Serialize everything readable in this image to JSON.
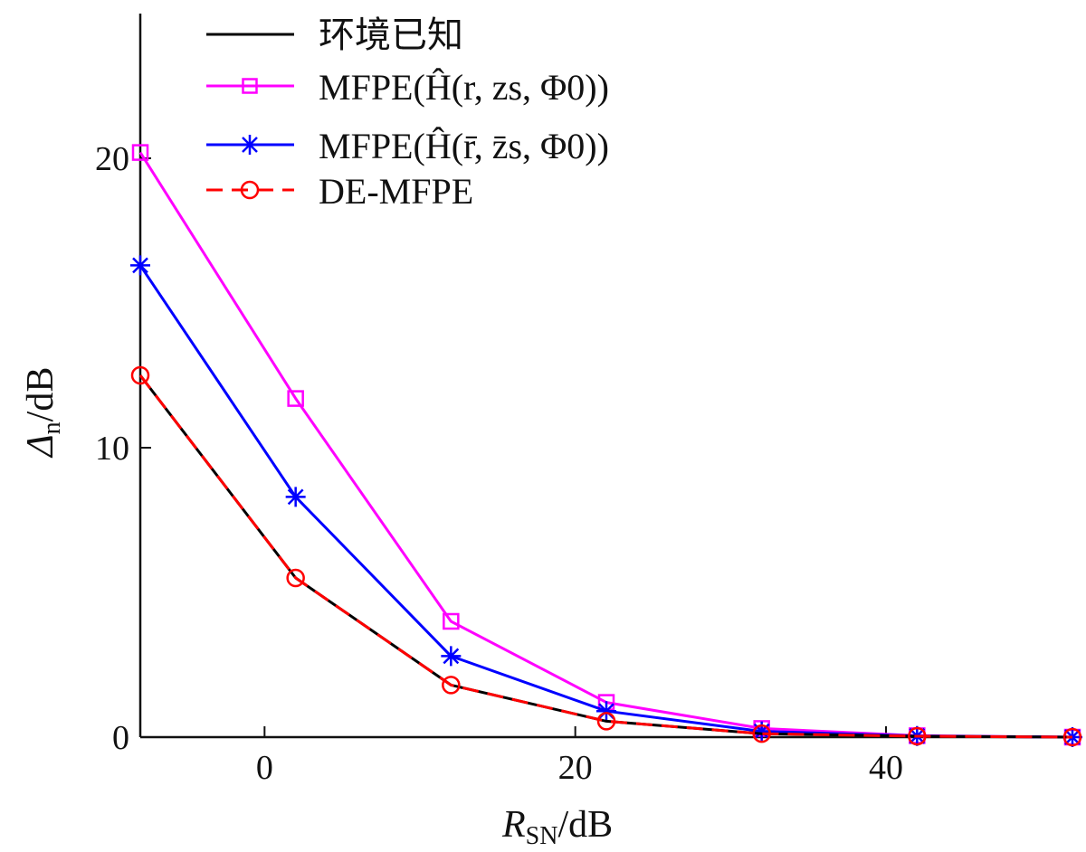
{
  "chart_data": {
    "type": "line",
    "x": [
      -8,
      2,
      12,
      22,
      32,
      42,
      52
    ],
    "xlim": [
      -8,
      52
    ],
    "ylim": [
      0,
      25
    ],
    "xticks": [
      0,
      20,
      40
    ],
    "yticks": [
      0,
      10,
      20
    ],
    "xtick_labels": [
      "0",
      "20",
      "40"
    ],
    "ytick_labels": [
      "0",
      "10",
      "20"
    ],
    "xlabel": {
      "main": "R",
      "sub": "SN",
      "unit": "/dB"
    },
    "ylabel": {
      "main": "Δ",
      "sub": "n",
      "unit": "/dB"
    },
    "grid": false,
    "legend_position": "top-center",
    "series": [
      {
        "name": "环境已知",
        "color": "#000000",
        "marker": "none",
        "dash": "solid",
        "values": [
          12.5,
          5.5,
          1.8,
          0.55,
          0.12,
          0.03,
          0.0
        ]
      },
      {
        "name": "MFPE(Ĥ(r, zs, Φ0))",
        "color": "#ff00ff",
        "marker": "square",
        "dash": "solid",
        "values": [
          20.2,
          11.7,
          4.0,
          1.2,
          0.3,
          0.05,
          0.0
        ]
      },
      {
        "name": "MFPE(Ĥ(r̄, z̄s, Φ0))",
        "color": "#0000ff",
        "marker": "star",
        "dash": "solid",
        "values": [
          16.3,
          8.3,
          2.8,
          0.9,
          0.2,
          0.04,
          0.0
        ]
      },
      {
        "name": "DE-MFPE",
        "color": "#ff0000",
        "marker": "circle",
        "dash": "dashed",
        "values": [
          12.5,
          5.5,
          1.8,
          0.55,
          0.12,
          0.03,
          0.0
        ]
      }
    ]
  }
}
